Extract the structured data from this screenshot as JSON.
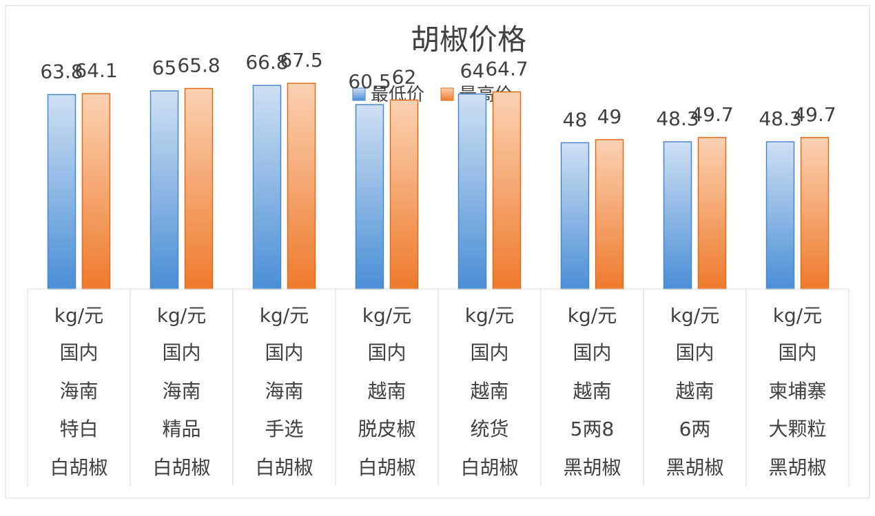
{
  "chart_data": {
    "type": "bar",
    "title": "胡椒价格",
    "legend_position": "top",
    "grid": false,
    "ylim": [
      0,
      70
    ],
    "categories": [
      [
        "kg/元",
        "国内",
        "海南",
        "特白",
        "白胡椒"
      ],
      [
        "kg/元",
        "国内",
        "海南",
        "精品",
        "白胡椒"
      ],
      [
        "kg/元",
        "国内",
        "海南",
        "手选",
        "白胡椒"
      ],
      [
        "kg/元",
        "国内",
        "越南",
        "脱皮椒",
        "白胡椒"
      ],
      [
        "kg/元",
        "国内",
        "越南",
        "统货",
        "白胡椒"
      ],
      [
        "kg/元",
        "国内",
        "越南",
        "5两8",
        "黑胡椒"
      ],
      [
        "kg/元",
        "国内",
        "越南",
        "6两",
        "黑胡椒"
      ],
      [
        "kg/元",
        "国内",
        "柬埔寨",
        "大颗粒",
        "黑胡椒"
      ]
    ],
    "series": [
      {
        "name": "最低价",
        "color": "#5B9BD5",
        "values": [
          63.8,
          65,
          66.8,
          60.5,
          64,
          48,
          48.3,
          48.3
        ]
      },
      {
        "name": "最高价",
        "color": "#ED7D31",
        "values": [
          64.1,
          65.8,
          67.5,
          62,
          64.7,
          49,
          49.7,
          49.7
        ]
      }
    ]
  }
}
